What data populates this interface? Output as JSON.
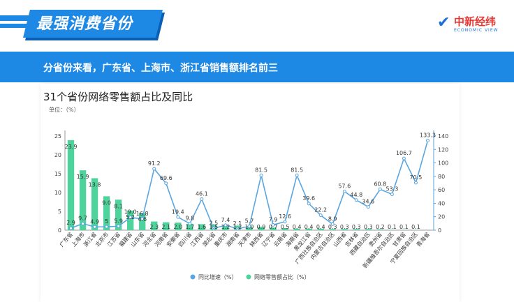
{
  "header": {
    "title": "最强消费省份",
    "logo_name": "中新经纬",
    "logo_sub": "ECONOMIC VIEW"
  },
  "banner": {
    "text": "分省份来看，广东省、上海市、浙江省销售额排名前三"
  },
  "colors": {
    "bar": "#4fd39c",
    "line": "#5aa6e0",
    "banner": "#1e88e5"
  },
  "chart_data": {
    "type": "bar",
    "title": "31个省份网络零售额占比及同比",
    "unit_label": "单位：（%）",
    "categories": [
      "广东省",
      "上海市",
      "浙江省",
      "北京市",
      "江苏省",
      "福建省",
      "山东省",
      "河北省",
      "河南省",
      "安徽省",
      "四川省",
      "江西省",
      "湖北省",
      "重庆市",
      "湖南省",
      "天津市",
      "陕西省",
      "辽宁省",
      "云南省",
      "海南省",
      "黑龙江省",
      "广西壮族自治区",
      "内蒙古自治区",
      "山西省",
      "吉林省",
      "西藏自治区",
      "贵州省",
      "新疆维吾尔自治区",
      "甘肃省",
      "宁夏回族自治区",
      "青海省"
    ],
    "series": [
      {
        "name": "网络零售额占比（%）",
        "type": "bar",
        "axis": "left",
        "values": [
          23.9,
          15.9,
          13.8,
          9.0,
          8.1,
          5.2,
          4.6,
          2.3,
          2.1,
          2.0,
          1.7,
          1.6,
          1.5,
          1.2,
          1.2,
          1.0,
          0.9,
          0.7,
          0.5,
          0.4,
          0.4,
          0.4,
          0.3,
          0.3,
          0.3,
          0.3,
          0.2,
          0.1,
          0.1,
          0.1,
          0
        ]
      },
      {
        "name": "同比增速（%）",
        "type": "line",
        "axis": "right",
        "values": [
          2.9,
          9.7,
          4.9,
          5,
          5.9,
          19.0,
          16.8,
          91.2,
          69.6,
          19.4,
          9.8,
          46.1,
          2.5,
          7.4,
          2.1,
          5.7,
          81.5,
          7.9,
          12.6,
          81.5,
          39.6,
          22.2,
          8.9,
          57.6,
          44.8,
          34.6,
          60.8,
          53.3,
          106.7,
          70.5,
          133.3
        ]
      }
    ],
    "bar_labels": [
      "23.9",
      "15.9",
      "13.8",
      "9.0",
      "8.1",
      "5.2",
      "4.6",
      "2.3",
      "2.1",
      "2.0",
      "1.7",
      "1.6",
      "1.5",
      "1.2",
      "1.2",
      "1.0",
      "0.9",
      "0.7",
      "0.5",
      "0.4",
      "0.4",
      "0.4",
      "0.3",
      "0.3",
      "0.3",
      "0.3",
      "0.2",
      "0.1",
      "0.1",
      "0.1",
      ""
    ],
    "line_labels": [
      "2.9",
      "9.7",
      "4.9",
      "5",
      "5.9",
      "19.0",
      "16.8",
      "91.2",
      "69.6",
      "19.4",
      "9.8",
      "46.1",
      "2.5",
      "7.4",
      "2.1",
      "5.7",
      "81.5",
      "7.9",
      "12.6",
      "81.5",
      "39.6",
      "22.2",
      "8.9",
      "57.6",
      "44.8",
      "34.6",
      "60.8",
      "53.3",
      "106.7",
      "70.5",
      "133.3"
    ],
    "left_axis": {
      "ylim": [
        0,
        25
      ],
      "ticks": [
        "0",
        "5",
        "10",
        "15",
        "20",
        "25"
      ]
    },
    "right_axis": {
      "ylim": [
        0,
        140
      ],
      "ticks": [
        "0",
        "20",
        "40",
        "60",
        "80",
        "100",
        "120",
        "140"
      ]
    },
    "legend": {
      "placement": "bottom",
      "items": [
        "同比增速（%）",
        "网络零售额占比（%）"
      ]
    },
    "grid": false
  }
}
